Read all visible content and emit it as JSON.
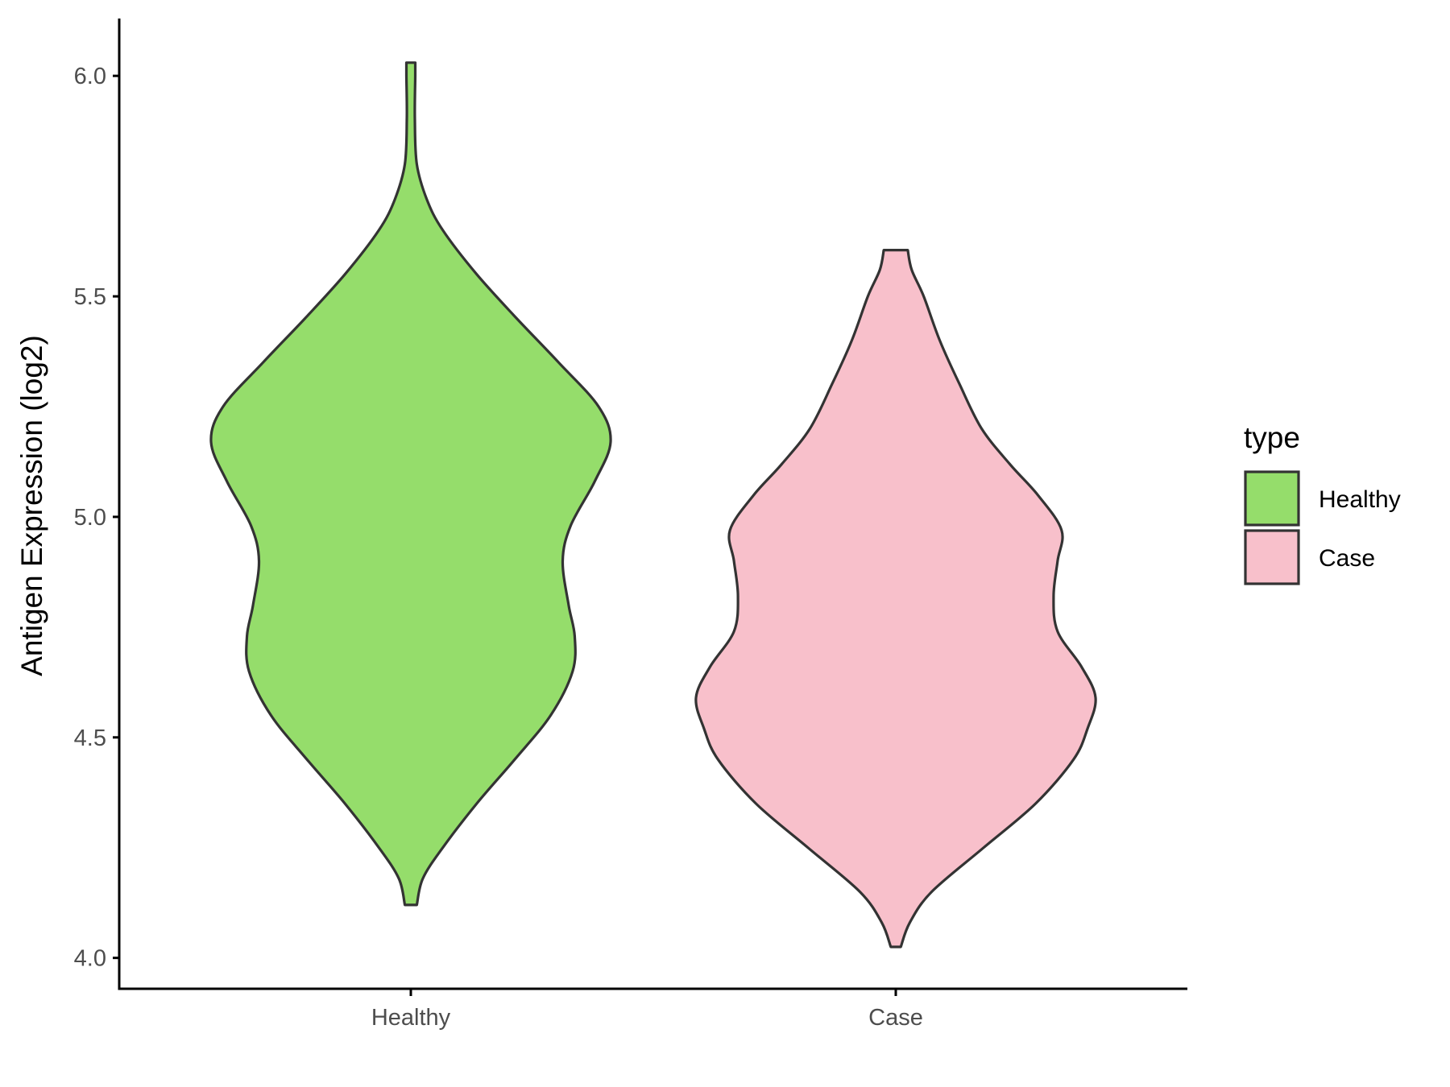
{
  "chart_data": {
    "type": "violin",
    "title": "",
    "xlabel": "",
    "ylabel": "Antigen Expression (log2)",
    "categories": [
      "Healthy",
      "Case"
    ],
    "ylim": [
      3.93,
      6.13
    ],
    "yticks": [
      "4.0",
      "4.5",
      "5.0",
      "5.5",
      "6.0"
    ],
    "grid": false,
    "legend": {
      "title": "type",
      "placement": "right",
      "entries": [
        {
          "label": "Healthy",
          "color": "#95DD6B"
        },
        {
          "label": "Case",
          "color": "#F8C0CB"
        }
      ]
    },
    "outline_color": "#333333",
    "series": [
      {
        "category": "Healthy",
        "color": "#95DD6B",
        "min": 4.12,
        "max": 6.03,
        "density_profile": [
          [
            4.12,
            0.03
          ],
          [
            4.18,
            0.06
          ],
          [
            4.25,
            0.16
          ],
          [
            4.35,
            0.33
          ],
          [
            4.45,
            0.52
          ],
          [
            4.55,
            0.7
          ],
          [
            4.65,
            0.81
          ],
          [
            4.73,
            0.82
          ],
          [
            4.8,
            0.79
          ],
          [
            4.9,
            0.76
          ],
          [
            4.98,
            0.8
          ],
          [
            5.08,
            0.92
          ],
          [
            5.17,
            1.0
          ],
          [
            5.25,
            0.94
          ],
          [
            5.35,
            0.74
          ],
          [
            5.45,
            0.53
          ],
          [
            5.55,
            0.33
          ],
          [
            5.65,
            0.16
          ],
          [
            5.72,
            0.08
          ],
          [
            5.8,
            0.03
          ],
          [
            5.9,
            0.02
          ],
          [
            6.0,
            0.022
          ],
          [
            6.03,
            0.022
          ]
        ]
      },
      {
        "category": "Case",
        "color": "#F8C0CB",
        "min": 4.025,
        "max": 5.605,
        "density_profile": [
          [
            4.025,
            0.025
          ],
          [
            4.08,
            0.07
          ],
          [
            4.15,
            0.18
          ],
          [
            4.25,
            0.44
          ],
          [
            4.35,
            0.7
          ],
          [
            4.45,
            0.89
          ],
          [
            4.52,
            0.96
          ],
          [
            4.59,
            1.0
          ],
          [
            4.66,
            0.93
          ],
          [
            4.74,
            0.81
          ],
          [
            4.82,
            0.79
          ],
          [
            4.9,
            0.81
          ],
          [
            4.97,
            0.83
          ],
          [
            5.05,
            0.71
          ],
          [
            5.12,
            0.57
          ],
          [
            5.2,
            0.43
          ],
          [
            5.3,
            0.32
          ],
          [
            5.4,
            0.22
          ],
          [
            5.5,
            0.14
          ],
          [
            5.56,
            0.08
          ],
          [
            5.605,
            0.06
          ]
        ]
      }
    ]
  }
}
